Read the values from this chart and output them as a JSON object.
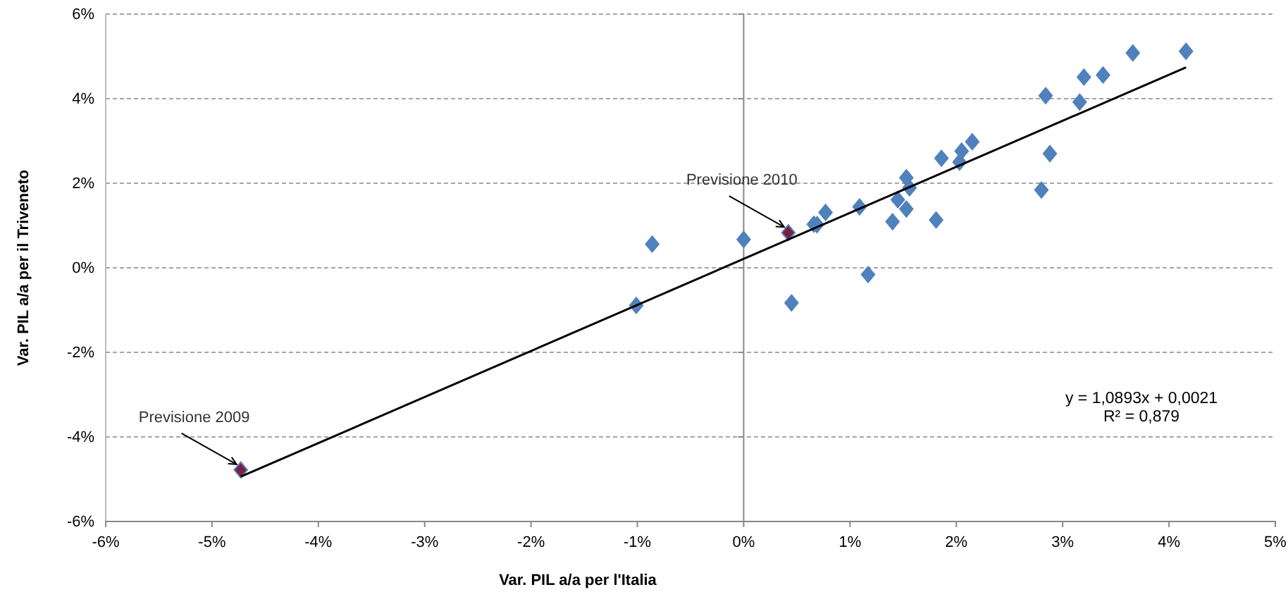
{
  "chart_data": {
    "type": "scatter",
    "xlabel": "Var. PIL a/a per l'Italia",
    "ylabel": "Var. PIL a/a  per il Triveneto",
    "xlim": [
      -6,
      5
    ],
    "xticks": [
      {
        "value": -6,
        "label": "-6%"
      },
      {
        "value": -5,
        "label": "-5%"
      },
      {
        "value": -4,
        "label": "-4%"
      },
      {
        "value": -3,
        "label": "-3%"
      },
      {
        "value": -2,
        "label": "-2%"
      },
      {
        "value": -1,
        "label": "-1%"
      },
      {
        "value": 0,
        "label": "0%"
      },
      {
        "value": 1,
        "label": "1%"
      },
      {
        "value": 2,
        "label": "2%"
      },
      {
        "value": 3,
        "label": "3%"
      },
      {
        "value": 4,
        "label": "4%"
      },
      {
        "value": 5,
        "label": "5%"
      }
    ],
    "ylim": [
      -6,
      6
    ],
    "yticks": [
      {
        "value": -6,
        "label": "-6%"
      },
      {
        "value": -4,
        "label": "-4%"
      },
      {
        "value": -2,
        "label": "-2%"
      },
      {
        "value": 0,
        "label": "0%"
      },
      {
        "value": 2,
        "label": "2%"
      },
      {
        "value": 4,
        "label": "4%"
      },
      {
        "value": 6,
        "label": "6%"
      }
    ],
    "grid": "y",
    "marker": "diamond",
    "ref_lines": [
      {
        "axis": "x",
        "value": 0,
        "color": "#888888"
      }
    ],
    "series": [
      {
        "type": "scatter",
        "color": "#4f81bd",
        "x": [
          -0.86,
          -1.01,
          0.0,
          0.45,
          0.66,
          0.69,
          0.77,
          1.09,
          1.17,
          1.4,
          1.45,
          1.53,
          1.53,
          1.56,
          1.81,
          1.86,
          2.03,
          2.05,
          2.15,
          2.8,
          2.88,
          2.84,
          3.16,
          3.2,
          3.38,
          3.66,
          4.16
        ],
        "values": [
          0.56,
          -0.89,
          0.67,
          -0.83,
          1.03,
          1.02,
          1.31,
          1.44,
          -0.16,
          1.09,
          1.61,
          1.39,
          2.13,
          1.89,
          1.13,
          2.59,
          2.5,
          2.76,
          2.98,
          1.84,
          2.7,
          4.07,
          3.92,
          4.51,
          4.56,
          5.08,
          5.12
        ]
      },
      {
        "type": "scatter",
        "color": "#7b1f3f",
        "x": [
          -4.73,
          0.42
        ],
        "values": [
          -4.78,
          0.83
        ]
      },
      {
        "type": "line",
        "marker": "none",
        "color": "#000000",
        "x": [
          -4.73,
          4.16
        ],
        "values": [
          -4.94,
          4.74
        ]
      }
    ],
    "annotations": [
      {
        "text": "Previsione 2009",
        "x": -4.73,
        "y": -4.78
      },
      {
        "text": "Previsione 2010",
        "x": 0.42,
        "y": 0.83
      },
      "y = 1,0893x + 0,0021\nR² = 0,879"
    ]
  }
}
